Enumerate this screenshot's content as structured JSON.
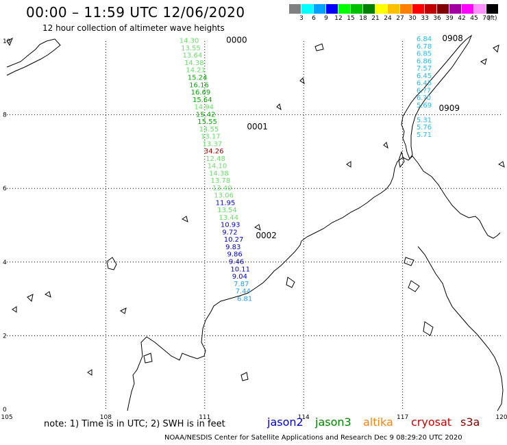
{
  "title": "00:00  – 11:59 UTC 12/06/2020",
  "subtitle": "12 hour collection of altimeter wave heights",
  "legend": {
    "colors": [
      "#808080",
      "#00ffff",
      "#00a0ff",
      "#0000ff",
      "#00ff00",
      "#00c000",
      "#008000",
      "#ffff00",
      "#ffc000",
      "#ff8000",
      "#ff0000",
      "#c00000",
      "#800000",
      "#a000a0",
      "#ff00ff",
      "#ff90ff",
      "#000000"
    ],
    "ticks": [
      "3",
      "6",
      "9",
      "12",
      "15",
      "18",
      "21",
      "24",
      "27",
      "30",
      "33",
      "36",
      "39",
      "42",
      "45",
      "70"
    ],
    "unit": "(ft)"
  },
  "axes": {
    "x_ticks": [
      "105",
      "108",
      "111",
      "114",
      "117",
      "120"
    ],
    "y_ticks": [
      "10",
      "8",
      "6",
      "4",
      "2",
      "0"
    ]
  },
  "note": "note:  1) Time is in UTC;  2) SWH is in feet",
  "satellites": [
    {
      "name": "jason2",
      "color": "#0000cc"
    },
    {
      "name": "jason3",
      "color": "#008000"
    },
    {
      "name": "altika",
      "color": "#ff8000"
    },
    {
      "name": "cryosat",
      "color": "#cc0000"
    },
    {
      "name": "s3a",
      "color": "#800000"
    }
  ],
  "credit": "NOAA/NESDIS Center for Satellite Applications and Research    Dec  9 08:29:20 UTC 2020",
  "time_labels": [
    {
      "text": "0000",
      "color": "#008000",
      "lon": 111.65,
      "lat": 9.95
    },
    {
      "text": "0001",
      "color": "#008000",
      "lon": 112.28,
      "lat": 7.6
    },
    {
      "text": "0002",
      "color": "#008000",
      "lon": 112.55,
      "lat": 4.65
    },
    {
      "text": "0908",
      "color": "#cc0000",
      "lon": 118.2,
      "lat": 10.0
    },
    {
      "text": "0909",
      "color": "#cc0000",
      "lon": 118.1,
      "lat": 8.1
    }
  ],
  "track_a": [
    {
      "v": "14.30",
      "c": "#66dd66",
      "lon": 110.23,
      "lat": 9.95
    },
    {
      "v": "13.55",
      "c": "#66dd66",
      "lon": 110.28,
      "lat": 9.75
    },
    {
      "v": "13.64",
      "c": "#66dd66",
      "lon": 110.33,
      "lat": 9.55
    },
    {
      "v": "14.38",
      "c": "#66dd66",
      "lon": 110.38,
      "lat": 9.35
    },
    {
      "v": "14.21",
      "c": "#66dd66",
      "lon": 110.43,
      "lat": 9.15
    },
    {
      "v": "15.24",
      "c": "#00aa00",
      "lon": 110.48,
      "lat": 8.95
    },
    {
      "v": "16.16",
      "c": "#00aa00",
      "lon": 110.53,
      "lat": 8.75
    },
    {
      "v": "16.69",
      "c": "#00aa00",
      "lon": 110.58,
      "lat": 8.55
    },
    {
      "v": "15.64",
      "c": "#00aa00",
      "lon": 110.63,
      "lat": 8.35
    },
    {
      "v": "14.94",
      "c": "#66dd66",
      "lon": 110.68,
      "lat": 8.15
    },
    {
      "v": "15.42",
      "c": "#00aa00",
      "lon": 110.73,
      "lat": 7.95
    },
    {
      "v": "15.55",
      "c": "#00aa00",
      "lon": 110.78,
      "lat": 7.75
    },
    {
      "v": "14.55",
      "c": "#66dd66",
      "lon": 110.83,
      "lat": 7.55
    },
    {
      "v": "13.17",
      "c": "#66dd66",
      "lon": 110.88,
      "lat": 7.35
    },
    {
      "v": "13.37",
      "c": "#66dd66",
      "lon": 110.93,
      "lat": 7.15
    },
    {
      "v": "34.26",
      "c": "#990000",
      "lon": 110.98,
      "lat": 6.95
    },
    {
      "v": "12.48",
      "c": "#66dd66",
      "lon": 111.03,
      "lat": 6.75
    },
    {
      "v": "14.10",
      "c": "#66dd66",
      "lon": 111.08,
      "lat": 6.55
    },
    {
      "v": "14.38",
      "c": "#66dd66",
      "lon": 111.13,
      "lat": 6.35
    },
    {
      "v": "13.78",
      "c": "#66dd66",
      "lon": 111.18,
      "lat": 6.15
    },
    {
      "v": "13.40",
      "c": "#66dd66",
      "lon": 111.23,
      "lat": 5.95
    },
    {
      "v": "13.06",
      "c": "#66dd66",
      "lon": 111.28,
      "lat": 5.75
    },
    {
      "v": "11.95",
      "c": "#0000cc",
      "lon": 111.33,
      "lat": 5.55
    },
    {
      "v": "13.54",
      "c": "#66dd66",
      "lon": 111.38,
      "lat": 5.35
    },
    {
      "v": "13.44",
      "c": "#66dd66",
      "lon": 111.43,
      "lat": 5.15
    },
    {
      "v": "10.93",
      "c": "#0000cc",
      "lon": 111.48,
      "lat": 4.95
    },
    {
      "v": "9.72",
      "c": "#0000cc",
      "lon": 111.53,
      "lat": 4.75
    },
    {
      "v": "10.27",
      "c": "#0000cc",
      "lon": 111.58,
      "lat": 4.55
    },
    {
      "v": "9.83",
      "c": "#0000cc",
      "lon": 111.63,
      "lat": 4.35
    },
    {
      "v": "9.86",
      "c": "#0000cc",
      "lon": 111.68,
      "lat": 4.15
    },
    {
      "v": "9.46",
      "c": "#0000cc",
      "lon": 111.73,
      "lat": 3.95
    },
    {
      "v": "10.11",
      "c": "#0000cc",
      "lon": 111.78,
      "lat": 3.75
    },
    {
      "v": "9.04",
      "c": "#0000cc",
      "lon": 111.83,
      "lat": 3.55
    },
    {
      "v": "7.87",
      "c": "#1e9bff",
      "lon": 111.88,
      "lat": 3.35
    },
    {
      "v": "7.44",
      "c": "#1e9bff",
      "lon": 111.93,
      "lat": 3.15
    },
    {
      "v": "6.81",
      "c": "#1e9bff",
      "lon": 111.98,
      "lat": 2.95
    }
  ],
  "track_b": [
    {
      "v": "6.84",
      "c": "#22bbee",
      "lon": 117.42,
      "lat": 10.0
    },
    {
      "v": "6.78",
      "c": "#22bbee",
      "lon": 117.42,
      "lat": 9.8
    },
    {
      "v": "6.85",
      "c": "#22bbee",
      "lon": 117.42,
      "lat": 9.6
    },
    {
      "v": "6.86",
      "c": "#22bbee",
      "lon": 117.42,
      "lat": 9.4
    },
    {
      "v": "7.57",
      "c": "#22bbee",
      "lon": 117.42,
      "lat": 9.2
    },
    {
      "v": "6.45",
      "c": "#22bbee",
      "lon": 117.42,
      "lat": 9.0
    },
    {
      "v": "6.45",
      "c": "#22bbee",
      "lon": 117.42,
      "lat": 8.8
    },
    {
      "v": "6.?7",
      "c": "#22bbee",
      "lon": 117.42,
      "lat": 8.6
    },
    {
      "v": "6.?0",
      "c": "#22bbee",
      "lon": 117.42,
      "lat": 8.4
    },
    {
      "v": "5.69",
      "c": "#22bbee",
      "lon": 117.42,
      "lat": 8.2
    },
    {
      "v": "5.31",
      "c": "#22bbee",
      "lon": 117.42,
      "lat": 7.8
    },
    {
      "v": "5.76",
      "c": "#22bbee",
      "lon": 117.42,
      "lat": 7.6
    },
    {
      "v": "5.71",
      "c": "#22bbee",
      "lon": 117.42,
      "lat": 7.4
    }
  ]
}
